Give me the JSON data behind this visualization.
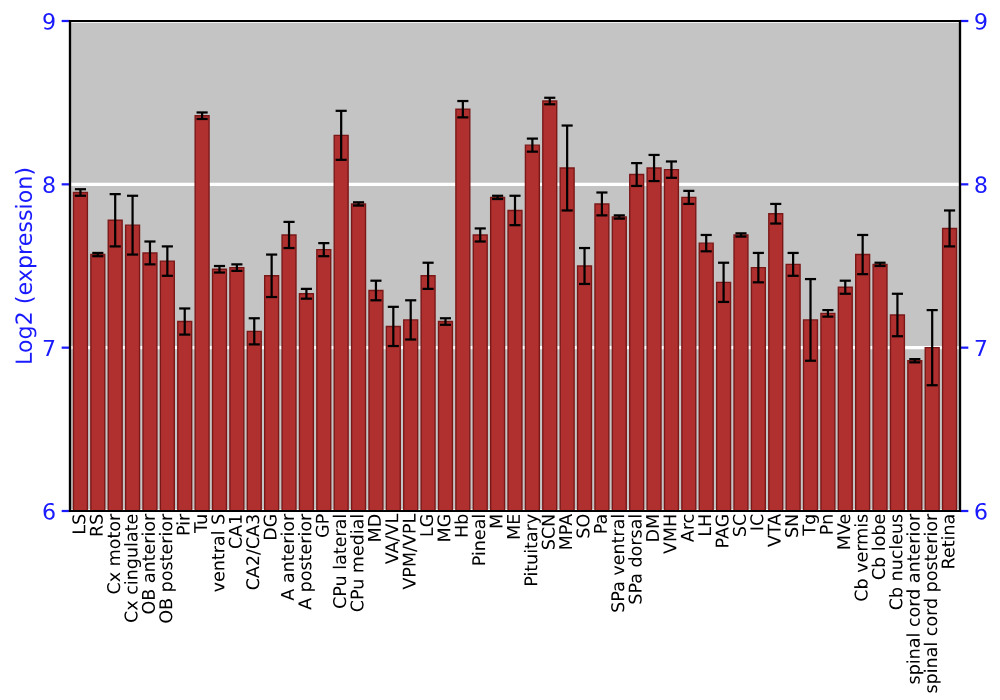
{
  "chart_data": {
    "type": "bar",
    "ylabel": "Log2 (expression)",
    "categories": [
      "LS",
      "RS",
      "Cx motor",
      "Cx cingulate",
      "OB anterior",
      "OB posterior",
      "Pir",
      "Tu",
      "ventral S",
      "CA1",
      "CA2/CA3",
      "DG",
      "A anterior",
      "A posterior",
      "GP",
      "CPu lateral",
      "CPu medial",
      "MD",
      "VA/VL",
      "VPM/VPL",
      "LG",
      "MG",
      "Hb",
      "Pineal",
      "M",
      "ME",
      "Pituitary",
      "SCN",
      "MPA",
      "SO",
      "Pa",
      "SPa ventral",
      "SPa dorsal",
      "DM",
      "VMH",
      "Arc",
      "LH",
      "PAG",
      "SC",
      "IC",
      "VTA",
      "SN",
      "Tg",
      "Pn",
      "MVe",
      "Cb vermis",
      "Cb lobe",
      "Cb nucleus",
      "spinal cord anterior",
      "spinal cord posterior",
      "Retina"
    ],
    "values": [
      7.95,
      7.57,
      7.78,
      7.75,
      7.58,
      7.53,
      7.16,
      8.42,
      7.48,
      7.49,
      7.1,
      7.44,
      7.69,
      7.33,
      7.6,
      8.3,
      7.88,
      7.35,
      7.13,
      7.17,
      7.44,
      7.16,
      8.46,
      7.69,
      7.92,
      7.84,
      8.24,
      8.51,
      8.1,
      7.5,
      7.88,
      7.8,
      8.06,
      8.1,
      8.09,
      7.92,
      7.64,
      7.4,
      7.69,
      7.49,
      7.82,
      7.51,
      7.17,
      7.21,
      7.37,
      7.57,
      7.51,
      7.2,
      6.92,
      7.0,
      7.73
    ],
    "errors": [
      0.02,
      0.01,
      0.16,
      0.18,
      0.07,
      0.09,
      0.08,
      0.02,
      0.02,
      0.02,
      0.08,
      0.13,
      0.08,
      0.03,
      0.04,
      0.15,
      0.01,
      0.06,
      0.12,
      0.12,
      0.08,
      0.02,
      0.05,
      0.04,
      0.01,
      0.09,
      0.04,
      0.02,
      0.26,
      0.11,
      0.07,
      0.01,
      0.07,
      0.08,
      0.05,
      0.04,
      0.05,
      0.12,
      0.01,
      0.09,
      0.06,
      0.07,
      0.25,
      0.02,
      0.04,
      0.12,
      0.01,
      0.13,
      0.01,
      0.23,
      0.11
    ],
    "color": "#b03030",
    "ylim": [
      6,
      9
    ],
    "yticks": [
      6,
      7,
      8,
      9
    ],
    "y2lim": [
      6,
      9
    ],
    "y2ticks": [
      6,
      7,
      8,
      9
    ],
    "grid": "y"
  }
}
